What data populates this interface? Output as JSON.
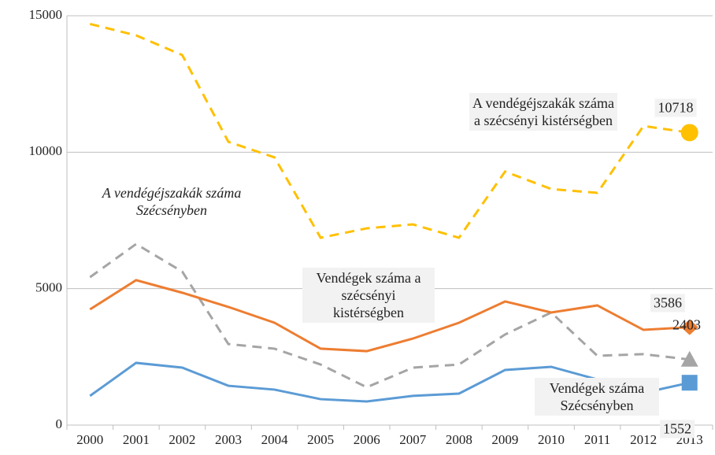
{
  "chart_data": {
    "type": "line",
    "categories": [
      "2000",
      "2001",
      "2002",
      "2003",
      "2004",
      "2005",
      "2006",
      "2007",
      "2008",
      "2009",
      "2010",
      "2011",
      "2012",
      "2013"
    ],
    "ylim": [
      0,
      15000
    ],
    "yticks": [
      0,
      5000,
      10000,
      15000
    ],
    "grid": true,
    "series": [
      {
        "name": "A vendégéjszakák száma a szécsényi kistérségben",
        "color": "#ffc000",
        "dashed": true,
        "marker": "circle",
        "values": [
          14700,
          14280,
          13560,
          10380,
          9810,
          6865,
          7210,
          7355,
          6865,
          9290,
          8650,
          8510,
          10960,
          10718
        ]
      },
      {
        "name": "A vendégéjszakák száma Szécsényben",
        "color": "#a5a5a5",
        "dashed": true,
        "marker": "triangle",
        "values": [
          5420,
          6635,
          5625,
          2970,
          2800,
          2220,
          1385,
          2105,
          2220,
          3320,
          4125,
          2540,
          2600,
          2403
        ]
      },
      {
        "name": "Vendégek száma a szécsényi kistérségben",
        "color": "#ed7d31",
        "dashed": false,
        "marker": "diamond",
        "values": [
          4240,
          5310,
          4850,
          4330,
          3750,
          2800,
          2710,
          3170,
          3750,
          4530,
          4125,
          4385,
          3490,
          3586
        ]
      },
      {
        "name": "Vendégek száma Szécsényben",
        "color": "#5b9bd5",
        "dashed": false,
        "marker": "square",
        "values": [
          1070,
          2280,
          2105,
          1440,
          1300,
          950,
          865,
          1070,
          1155,
          2020,
          2135,
          1670,
          1180,
          1552
        ]
      }
    ]
  }
}
